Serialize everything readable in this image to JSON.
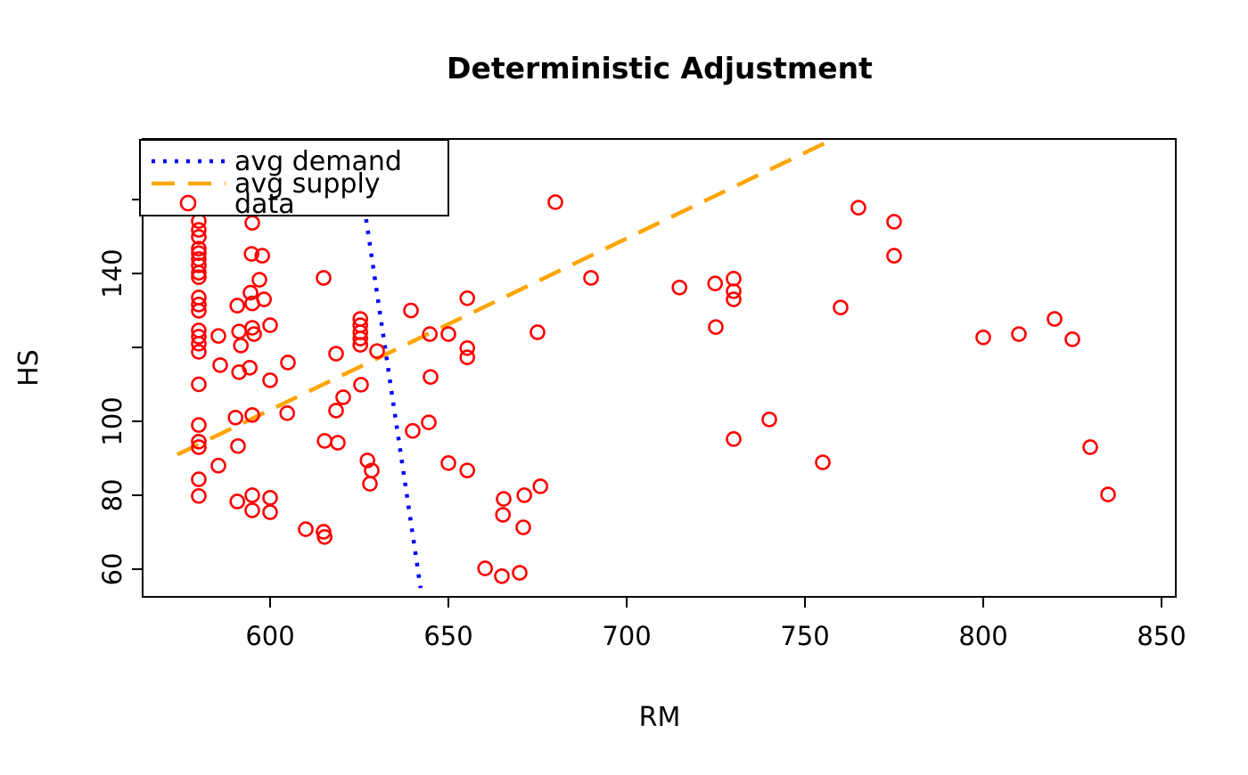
{
  "chart_data": {
    "type": "scatter",
    "title": "Deterministic Adjustment",
    "xlabel": "RM",
    "ylabel": "HS",
    "xlim": [
      564.25,
      854.0
    ],
    "ylim": [
      52.5,
      176.4
    ],
    "grid": false,
    "background": "#ffffff",
    "axis_color": "#000000",
    "x_ticks": [
      {
        "value": 600,
        "label": "600"
      },
      {
        "value": 650,
        "label": "650"
      },
      {
        "value": 700,
        "label": "700"
      },
      {
        "value": 750,
        "label": "750"
      },
      {
        "value": 800,
        "label": "800"
      },
      {
        "value": 850,
        "label": "850"
      }
    ],
    "y_ticks": [
      {
        "value": 60,
        "label": "60"
      },
      {
        "value": 80,
        "label": "80"
      },
      {
        "value": 100,
        "label": "100"
      },
      {
        "value": 120,
        "label": ""
      },
      {
        "value": 140,
        "label": "140"
      },
      {
        "value": 160,
        "label": ""
      }
    ],
    "legend": {
      "position": "top-left",
      "items": [
        {
          "label": "avg demand",
          "type": "line",
          "style": "dotted",
          "color": "#0000ff"
        },
        {
          "label": "avg supply",
          "type": "line",
          "style": "dashed",
          "color": "#ffa500"
        },
        {
          "label": "data",
          "type": "marker",
          "style": "circle",
          "color": "#ff0000"
        }
      ]
    },
    "series": [
      {
        "name": "avg demand",
        "type": "line",
        "style": "dotted",
        "color": "#0000ff",
        "points": [
          [
            623.6,
            176.4
          ],
          [
            642.2,
            54.9
          ]
        ]
      },
      {
        "name": "avg supply",
        "type": "line",
        "style": "dashed",
        "color": "#ffa500",
        "points": [
          [
            574.0,
            91.0
          ],
          [
            758.0,
            176.4
          ]
        ]
      },
      {
        "name": "data",
        "type": "scatter",
        "marker": "circle",
        "color": "#ff0000",
        "points": [
          [
            580,
            154.2
          ],
          [
            580,
            151.8
          ],
          [
            580,
            149.9
          ],
          [
            580,
            146.7
          ],
          [
            580,
            145.5
          ],
          [
            580,
            143.9
          ],
          [
            580,
            142.2
          ],
          [
            580,
            140.2
          ],
          [
            580,
            139
          ],
          [
            580,
            133.5
          ],
          [
            580,
            131.6
          ],
          [
            580,
            129.9
          ],
          [
            580,
            124.6
          ],
          [
            580,
            122.9
          ],
          [
            580,
            121
          ],
          [
            580,
            118.8
          ],
          [
            580,
            110
          ],
          [
            580,
            99
          ],
          [
            580,
            94.5
          ],
          [
            580,
            93
          ],
          [
            580,
            84.3
          ],
          [
            580,
            79.8
          ],
          [
            595,
            153.7
          ],
          [
            594.8,
            145.3
          ],
          [
            597.8,
            144.8
          ],
          [
            597,
            138.3
          ],
          [
            594.5,
            134.8
          ],
          [
            598.3,
            133
          ],
          [
            595,
            131.9
          ],
          [
            590.8,
            131.3
          ],
          [
            595,
            125.3
          ],
          [
            591.3,
            124.3
          ],
          [
            585.5,
            123.1
          ],
          [
            591.8,
            120.5
          ],
          [
            595.5,
            123.6
          ],
          [
            600,
            126
          ],
          [
            586,
            115.2
          ],
          [
            591.3,
            113.3
          ],
          [
            594.3,
            114.5
          ],
          [
            600,
            111.1
          ],
          [
            605,
            115.9
          ],
          [
            590.3,
            101
          ],
          [
            595,
            101.7
          ],
          [
            591,
            93.3
          ],
          [
            604.8,
            102.2
          ],
          [
            585.5,
            88
          ],
          [
            590.8,
            78.3
          ],
          [
            595,
            80
          ],
          [
            595,
            75.9
          ],
          [
            600,
            79.3
          ],
          [
            600,
            75.4
          ],
          [
            615,
            138.8
          ],
          [
            625.3,
            127.7
          ],
          [
            625.3,
            126
          ],
          [
            625.3,
            124.1
          ],
          [
            625.3,
            122.4
          ],
          [
            625.3,
            120.7
          ],
          [
            618.5,
            118.3
          ],
          [
            630,
            119
          ],
          [
            625.5,
            109.9
          ],
          [
            620.5,
            106.5
          ],
          [
            618.5,
            102.9
          ],
          [
            615.3,
            94.7
          ],
          [
            619,
            94.2
          ],
          [
            627.3,
            89.4
          ],
          [
            628.5,
            86.7
          ],
          [
            628,
            83.1
          ],
          [
            610,
            70.8
          ],
          [
            615,
            70.1
          ],
          [
            615.3,
            68.7
          ],
          [
            639.5,
            130
          ],
          [
            640,
            97.4
          ],
          [
            644.5,
            99.7
          ],
          [
            650,
            88.7
          ],
          [
            655.3,
            86.7
          ],
          [
            644.8,
            123.6
          ],
          [
            650,
            123.6
          ],
          [
            655.3,
            119.8
          ],
          [
            655.3,
            117.3
          ],
          [
            655.3,
            133.3
          ],
          [
            645,
            112
          ],
          [
            665.5,
            79
          ],
          [
            671.3,
            80
          ],
          [
            675.8,
            82.4
          ],
          [
            665.3,
            74.7
          ],
          [
            671,
            71.3
          ],
          [
            660.3,
            60.2
          ],
          [
            665,
            58.1
          ],
          [
            670,
            59
          ],
          [
            675,
            124.1
          ],
          [
            680,
            159.3
          ],
          [
            690,
            138.8
          ],
          [
            714.8,
            136.2
          ],
          [
            724.8,
            137.3
          ],
          [
            730,
            138.6
          ],
          [
            730,
            135.2
          ],
          [
            730,
            133
          ],
          [
            725,
            125.5
          ],
          [
            740,
            100.5
          ],
          [
            730,
            95.2
          ],
          [
            755,
            88.9
          ],
          [
            760,
            130.8
          ],
          [
            765,
            157.8
          ],
          [
            775,
            154
          ],
          [
            775,
            144.8
          ],
          [
            800,
            122.7
          ],
          [
            810,
            123.6
          ],
          [
            820,
            127.7
          ],
          [
            825,
            122.2
          ],
          [
            830,
            93
          ],
          [
            835,
            80.2
          ]
        ]
      }
    ]
  }
}
